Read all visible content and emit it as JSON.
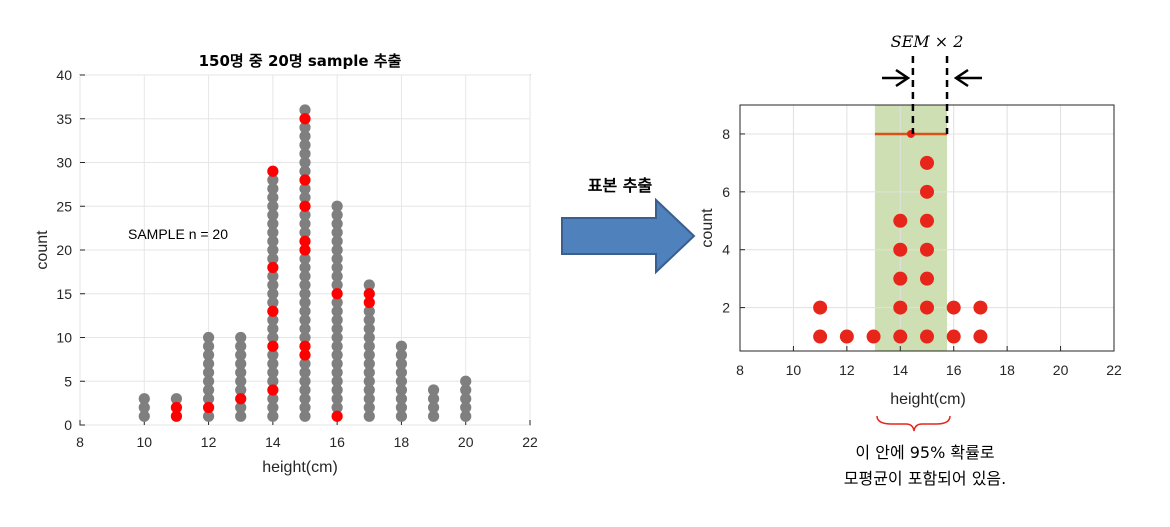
{
  "charts": {
    "left": {
      "title": "150명 중 20명 sample 추출",
      "annotation": "SAMPLE n = 20",
      "xlabel": "height(cm)",
      "ylabel": "count"
    },
    "right": {
      "xlabel": "height(cm)",
      "ylabel": "count"
    }
  },
  "arrow_label": "표본 추출",
  "sem_label": "SEM × 2",
  "caption_line1": "이 안에 95% 확률로",
  "caption_line2": "모평균이 포함되어 있음.",
  "colors": {
    "population": "#7f7f7f",
    "sample_left": "#ff0000",
    "sample_right": "#e8251a",
    "mean_line": "#d95319",
    "ci_band": "#c5dba6",
    "arrow_fill": "#4f81bd",
    "arrow_stroke": "#3a5f8f",
    "brace": "#e8251a"
  },
  "chart_data": [
    {
      "type": "scatter",
      "title": "150명 중 20명 sample 추출",
      "xlabel": "height(cm)",
      "ylabel": "count",
      "xlim": [
        8,
        22
      ],
      "ylim": [
        0,
        40
      ],
      "xticks": [
        8,
        10,
        12,
        14,
        16,
        18,
        20,
        22
      ],
      "yticks": [
        0,
        5,
        10,
        15,
        20,
        25,
        30,
        35,
        40
      ],
      "grid": true,
      "series": [
        {
          "kind": "population",
          "stacks": [
            {
              "x": 10,
              "count": 3
            },
            {
              "x": 11,
              "count": 3
            },
            {
              "x": 12,
              "count": 10
            },
            {
              "x": 13,
              "count": 10
            },
            {
              "x": 14,
              "count": 29
            },
            {
              "x": 15,
              "count": 36
            },
            {
              "x": 16,
              "count": 25
            },
            {
              "x": 17,
              "count": 16
            },
            {
              "x": 18,
              "count": 9
            },
            {
              "x": 19,
              "count": 4
            },
            {
              "x": 20,
              "count": 5
            }
          ]
        },
        {
          "kind": "sample",
          "points": [
            {
              "x": 11,
              "y": 1
            },
            {
              "x": 11,
              "y": 2
            },
            {
              "x": 12,
              "y": 2
            },
            {
              "x": 13,
              "y": 3
            },
            {
              "x": 14,
              "y": 4
            },
            {
              "x": 14,
              "y": 9
            },
            {
              "x": 14,
              "y": 13
            },
            {
              "x": 14,
              "y": 18
            },
            {
              "x": 14,
              "y": 29
            },
            {
              "x": 15,
              "y": 8
            },
            {
              "x": 15,
              "y": 9
            },
            {
              "x": 15,
              "y": 20
            },
            {
              "x": 15,
              "y": 21
            },
            {
              "x": 15,
              "y": 25
            },
            {
              "x": 15,
              "y": 28
            },
            {
              "x": 15,
              "y": 35
            },
            {
              "x": 16,
              "y": 1
            },
            {
              "x": 16,
              "y": 15
            },
            {
              "x": 17,
              "y": 14
            },
            {
              "x": 17,
              "y": 15
            }
          ]
        }
      ]
    },
    {
      "type": "scatter",
      "xlabel": "height(cm)",
      "ylabel": "count",
      "xlim": [
        8,
        22
      ],
      "ylim": [
        0.5,
        9
      ],
      "xticks": [
        8,
        10,
        12,
        14,
        16,
        18,
        20,
        22
      ],
      "yticks": [
        2,
        4,
        6,
        8
      ],
      "grid": true,
      "sample_counts": [
        {
          "x": 11,
          "count": 2
        },
        {
          "x": 12,
          "count": 1
        },
        {
          "x": 13,
          "count": 1
        },
        {
          "x": 14,
          "count": 5
        },
        {
          "x": 15,
          "count": 7
        },
        {
          "x": 16,
          "count": 2
        },
        {
          "x": 17,
          "count": 2
        }
      ],
      "mean": 14.4,
      "ci": [
        13.05,
        15.75
      ],
      "mean_line_y": 8
    }
  ]
}
